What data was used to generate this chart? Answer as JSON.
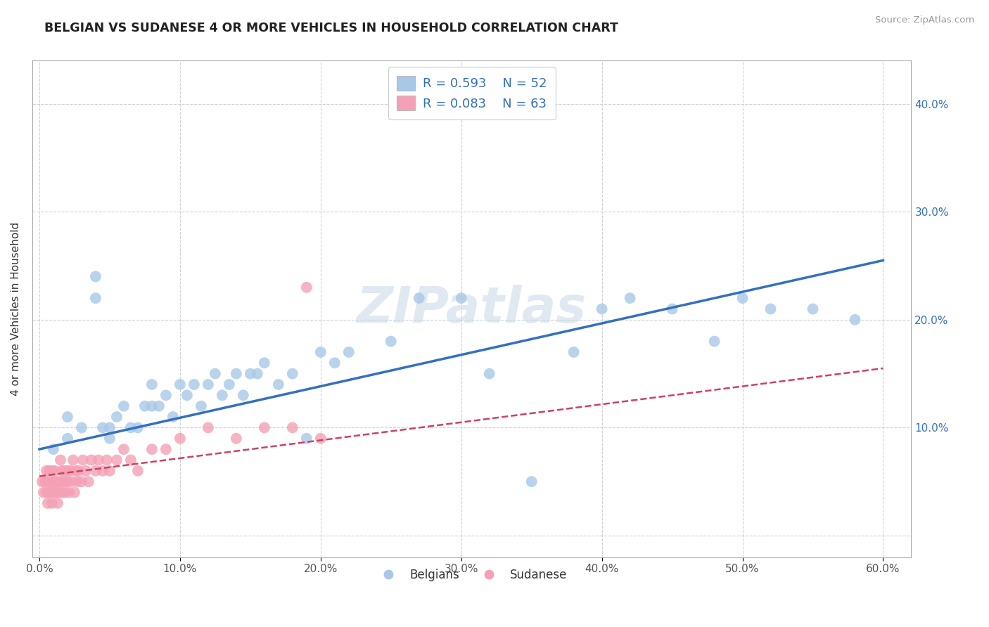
{
  "title": "BELGIAN VS SUDANESE 4 OR MORE VEHICLES IN HOUSEHOLD CORRELATION CHART",
  "source": "Source: ZipAtlas.com",
  "ylabel": "4 or more Vehicles in Household",
  "xlim": [
    -0.005,
    0.62
  ],
  "ylim": [
    -0.02,
    0.44
  ],
  "xticks": [
    0.0,
    0.1,
    0.2,
    0.3,
    0.4,
    0.5,
    0.6
  ],
  "xticklabels": [
    "0.0%",
    "10.0%",
    "20.0%",
    "30.0%",
    "40.0%",
    "50.0%",
    "60.0%"
  ],
  "yticks": [
    0.0,
    0.1,
    0.2,
    0.3,
    0.4
  ],
  "yticklabels": [
    "",
    "10.0%",
    "20.0%",
    "30.0%",
    "40.0%"
  ],
  "belgian_color": "#A8C8E8",
  "sudanese_color": "#F4A0B5",
  "belgian_line_color": "#3370C0",
  "sudanese_line_color": "#D04060",
  "belgian_R": 0.593,
  "belgian_N": 52,
  "sudanese_R": 0.083,
  "sudanese_N": 63,
  "legend_text_color": "#3370C0",
  "watermark": "ZIPatlas",
  "background_color": "#ffffff",
  "grid_color": "#cccccc",
  "belgian_line_x0": 0.0,
  "belgian_line_y0": 0.08,
  "belgian_line_x1": 0.6,
  "belgian_line_y1": 0.255,
  "sudanese_line_x0": 0.0,
  "sudanese_line_y0": 0.055,
  "sudanese_line_x1": 0.6,
  "sudanese_line_y1": 0.155,
  "belgian_x": [
    0.01,
    0.02,
    0.02,
    0.03,
    0.04,
    0.04,
    0.045,
    0.05,
    0.05,
    0.055,
    0.06,
    0.065,
    0.07,
    0.075,
    0.08,
    0.08,
    0.085,
    0.09,
    0.095,
    0.1,
    0.105,
    0.11,
    0.115,
    0.12,
    0.125,
    0.13,
    0.135,
    0.14,
    0.145,
    0.15,
    0.155,
    0.16,
    0.17,
    0.18,
    0.19,
    0.2,
    0.21,
    0.22,
    0.25,
    0.27,
    0.3,
    0.32,
    0.35,
    0.38,
    0.4,
    0.42,
    0.45,
    0.48,
    0.5,
    0.52,
    0.55,
    0.58
  ],
  "belgian_y": [
    0.08,
    0.09,
    0.11,
    0.1,
    0.24,
    0.22,
    0.1,
    0.09,
    0.1,
    0.11,
    0.12,
    0.1,
    0.1,
    0.12,
    0.12,
    0.14,
    0.12,
    0.13,
    0.11,
    0.14,
    0.13,
    0.14,
    0.12,
    0.14,
    0.15,
    0.13,
    0.14,
    0.15,
    0.13,
    0.15,
    0.15,
    0.16,
    0.14,
    0.15,
    0.09,
    0.17,
    0.16,
    0.17,
    0.18,
    0.22,
    0.22,
    0.15,
    0.05,
    0.17,
    0.21,
    0.22,
    0.21,
    0.18,
    0.22,
    0.21,
    0.21,
    0.2
  ],
  "sudanese_x": [
    0.002,
    0.003,
    0.004,
    0.005,
    0.005,
    0.006,
    0.006,
    0.007,
    0.007,
    0.008,
    0.008,
    0.009,
    0.009,
    0.01,
    0.01,
    0.011,
    0.011,
    0.012,
    0.012,
    0.013,
    0.013,
    0.014,
    0.015,
    0.015,
    0.016,
    0.016,
    0.017,
    0.018,
    0.018,
    0.019,
    0.02,
    0.02,
    0.021,
    0.022,
    0.023,
    0.024,
    0.025,
    0.026,
    0.027,
    0.028,
    0.03,
    0.031,
    0.033,
    0.035,
    0.037,
    0.04,
    0.042,
    0.045,
    0.048,
    0.05,
    0.055,
    0.06,
    0.065,
    0.07,
    0.08,
    0.09,
    0.1,
    0.12,
    0.14,
    0.16,
    0.18,
    0.19,
    0.2
  ],
  "sudanese_y": [
    0.05,
    0.04,
    0.05,
    0.04,
    0.06,
    0.03,
    0.05,
    0.04,
    0.06,
    0.04,
    0.05,
    0.03,
    0.06,
    0.04,
    0.05,
    0.04,
    0.06,
    0.04,
    0.05,
    0.03,
    0.05,
    0.04,
    0.05,
    0.07,
    0.04,
    0.06,
    0.05,
    0.04,
    0.06,
    0.05,
    0.05,
    0.06,
    0.04,
    0.06,
    0.05,
    0.07,
    0.04,
    0.06,
    0.05,
    0.06,
    0.05,
    0.07,
    0.06,
    0.05,
    0.07,
    0.06,
    0.07,
    0.06,
    0.07,
    0.06,
    0.07,
    0.08,
    0.07,
    0.06,
    0.08,
    0.08,
    0.09,
    0.1,
    0.09,
    0.1,
    0.1,
    0.23,
    0.09
  ]
}
